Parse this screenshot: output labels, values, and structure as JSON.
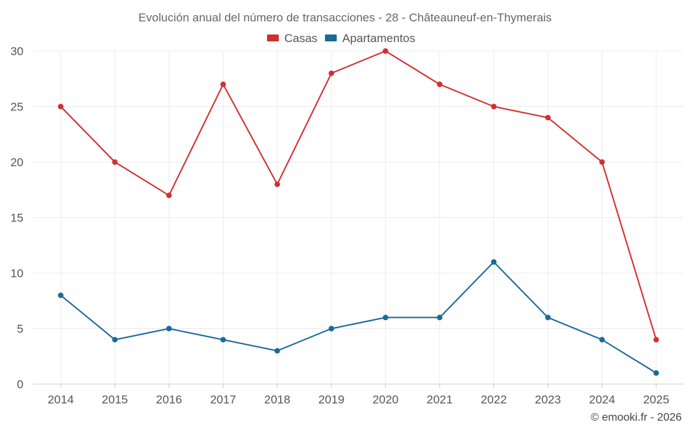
{
  "chart_data": {
    "type": "line",
    "title": "Evolución anual del número de transacciones - 28 - Châteauneuf-en-Thymerais",
    "categories": [
      "2014",
      "2015",
      "2016",
      "2017",
      "2018",
      "2019",
      "2020",
      "2021",
      "2022",
      "2023",
      "2024",
      "2025"
    ],
    "series": [
      {
        "name": "Casas",
        "color": "#d32f2f",
        "values": [
          25,
          20,
          17,
          27,
          18,
          28,
          30,
          27,
          25,
          24,
          20,
          4
        ]
      },
      {
        "name": "Apartamentos",
        "color": "#1a6a9a",
        "values": [
          8,
          4,
          5,
          4,
          3,
          5,
          6,
          6,
          11,
          6,
          4,
          1
        ]
      }
    ],
    "yticks": [
      "0",
      "5",
      "10",
      "15",
      "20",
      "25",
      "30"
    ],
    "ylim": [
      0,
      30
    ],
    "grid": true,
    "legend_position": "top-center",
    "xlabel": "",
    "ylabel": ""
  },
  "credit": "© emooki.fr - 2026"
}
